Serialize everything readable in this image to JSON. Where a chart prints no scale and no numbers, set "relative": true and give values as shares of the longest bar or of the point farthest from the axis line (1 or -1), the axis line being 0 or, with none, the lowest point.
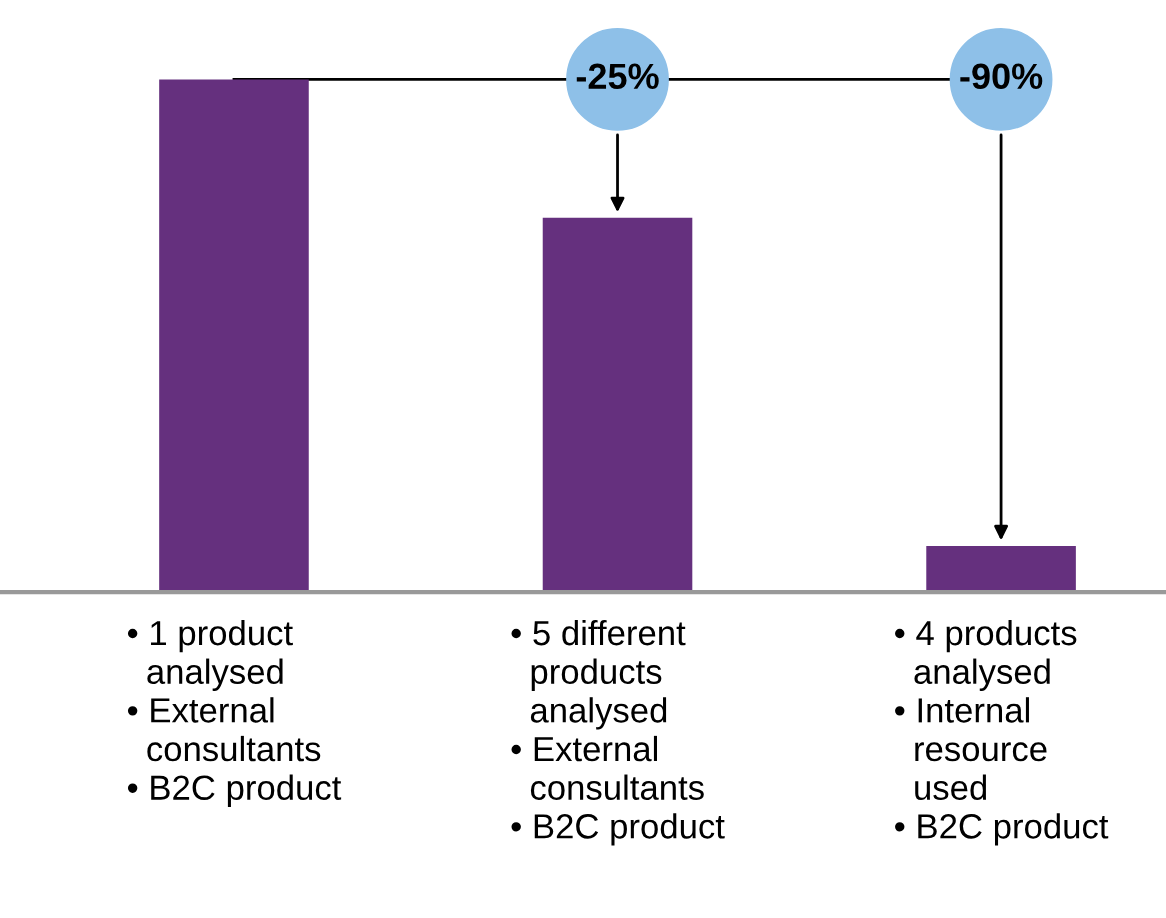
{
  "chart_data": {
    "type": "bar",
    "relative": true,
    "categories": [
      "• 1 product\n  analysed\n• External\n  consultants\n• B2C product",
      "• 5 different\n  products\n  analysed\n• External\n  consultants\n• B2C product",
      "• 4 products\n  analysed\n• Internal\n  resource\n  used\n• B2C product"
    ],
    "values": [
      1,
      0.73,
      0.09
    ],
    "color": "#65307e",
    "annotations": [
      "-25%",
      "-90%"
    ],
    "grid": false,
    "legend": false
  }
}
